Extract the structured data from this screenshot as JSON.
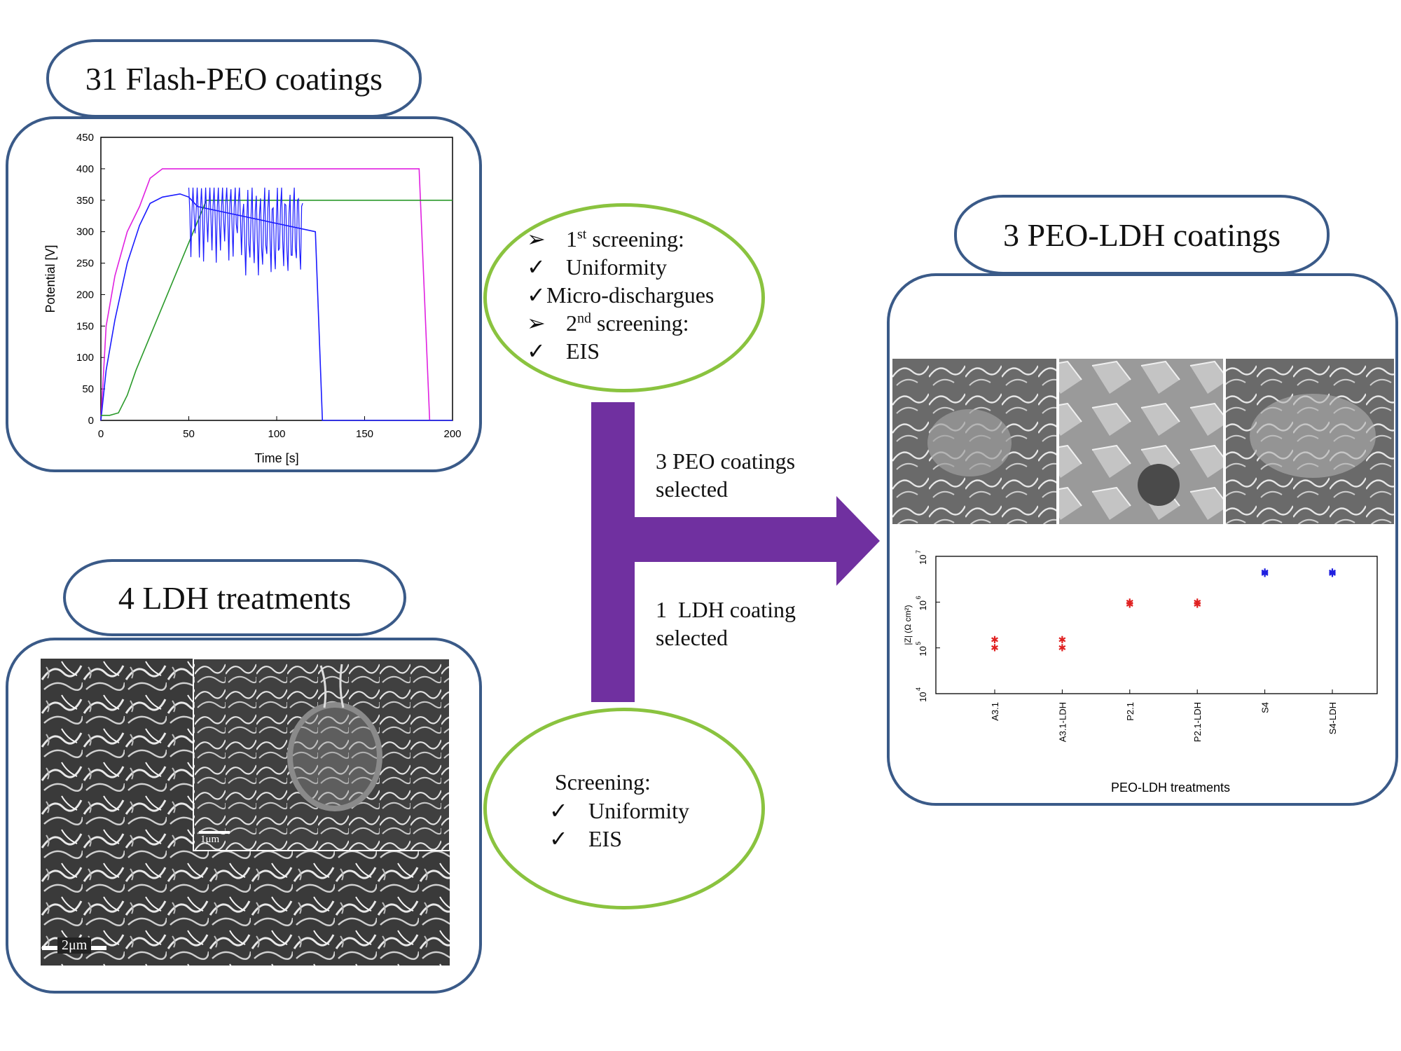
{
  "flash_peo": {
    "title": "31 Flash-PEO coatings",
    "chart_data": {
      "type": "line",
      "xlabel": "Time [s]",
      "ylabel": "Potential [V]",
      "xlim": [
        0,
        200
      ],
      "ylim": [
        0,
        450
      ],
      "xticks": [
        "0",
        "50",
        "100",
        "150",
        "200"
      ],
      "yticks": [
        "0",
        "50",
        "100",
        "150",
        "200",
        "250",
        "300",
        "350",
        "400",
        "450"
      ],
      "series": [
        {
          "color": "#e020e0",
          "x": [
            0,
            3,
            8,
            15,
            22,
            28,
            35,
            100,
            180,
            181,
            187
          ],
          "y": [
            0,
            150,
            230,
            300,
            340,
            385,
            400,
            400,
            400,
            400,
            0
          ]
        },
        {
          "color": "#1a1aff",
          "x": [
            0,
            3,
            8,
            15,
            22,
            28,
            35,
            45,
            50,
            55,
            122,
            126,
            200
          ],
          "y": [
            0,
            80,
            160,
            250,
            310,
            345,
            355,
            360,
            355,
            340,
            300,
            0,
            0
          ]
        },
        {
          "color": "#2a9a2a",
          "x": [
            0,
            5,
            10,
            15,
            20,
            60,
            200
          ],
          "y": [
            8,
            8,
            12,
            40,
            80,
            350,
            350
          ]
        }
      ],
      "grid": false
    }
  },
  "ldh": {
    "title": "4 LDH treatments",
    "scale_main": "2μm",
    "scale_inset": "1μm"
  },
  "screen1": {
    "lines": [
      {
        "mark": "➢",
        "text": "1",
        "sup": "st",
        "rest": " screening:"
      },
      {
        "mark": "✓",
        "text": "Uniformity",
        "sup": "",
        "rest": ""
      },
      {
        "mark": "✓",
        "text": "Micro-dischargues",
        "sup": "",
        "rest": ""
      },
      {
        "mark": "➢",
        "text": "2",
        "sup": "nd",
        "rest": " screening:"
      },
      {
        "mark": "✓",
        "text": "EIS",
        "sup": "",
        "rest": ""
      }
    ]
  },
  "screen2": {
    "heading": "Screening:",
    "items": [
      {
        "mark": "✓",
        "text": "Uniformity"
      },
      {
        "mark": "✓",
        "text": "EIS"
      }
    ]
  },
  "arrow": {
    "top_line1": "3 PEO coatings",
    "top_line2": "selected",
    "bottom_line1": "1  LDH coating",
    "bottom_line2": "selected",
    "color": "#7030a0"
  },
  "peo_ldh": {
    "title": "3 PEO-LDH coatings",
    "chart_data": {
      "type": "scatter",
      "xlabel": "PEO-LDH treatments",
      "ylabel": "|Z| (Ω cm²)",
      "categories": [
        "A3.1",
        "A3.1-LDH",
        "P2.1",
        "P2.1-LDH",
        "S4",
        "S4-LDH"
      ],
      "ylim": [
        10000,
        10000000
      ],
      "yscale": "log",
      "yticks": [
        "10",
        "10",
        "10",
        "10"
      ],
      "ytick_exp": [
        "4",
        "5",
        "6",
        "7"
      ],
      "points": [
        {
          "category": "A3.1",
          "values": [
            150000,
            100000
          ],
          "color": "#e02020"
        },
        {
          "category": "A3.1-LDH",
          "values": [
            150000,
            100000
          ],
          "color": "#e02020"
        },
        {
          "category": "P2.1",
          "values": [
            1000000,
            900000
          ],
          "color": "#e02020"
        },
        {
          "category": "P2.1-LDH",
          "values": [
            1000000,
            900000
          ],
          "color": "#e02020"
        },
        {
          "category": "S4",
          "values": [
            4500000,
            4200000
          ],
          "color": "#2020e0"
        },
        {
          "category": "S4-LDH",
          "values": [
            4500000,
            4200000
          ],
          "color": "#2020e0"
        }
      ]
    }
  }
}
